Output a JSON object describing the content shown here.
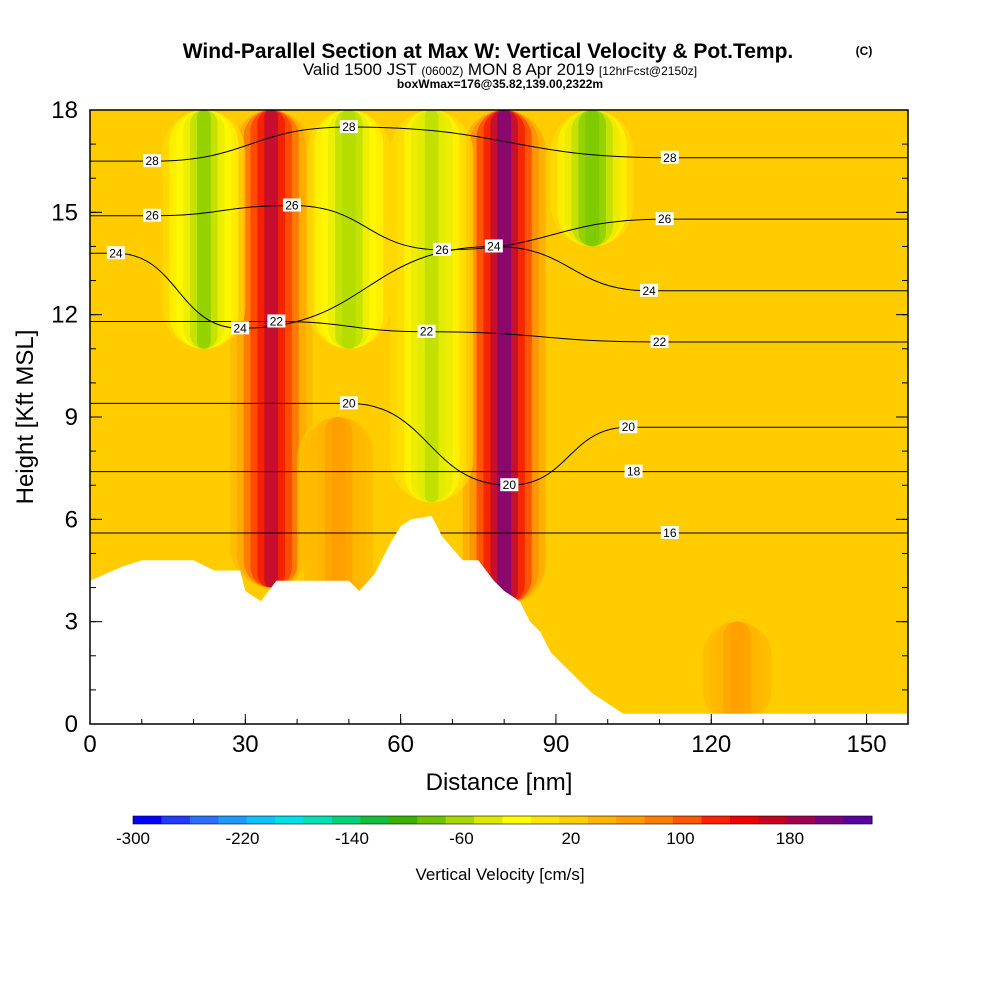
{
  "title": {
    "main": "Wind-Parallel Section at Max W: Vertical Velocity & Pot.Temp.",
    "copyright": "(C)",
    "valid_prefix": "Valid 1500 JST",
    "valid_utc": "(0600Z)",
    "valid_date": "MON 8 Apr 2019",
    "forecast": "[12hrFcst@2150z]",
    "box": "boxWmax=176@35.82,139.00,2322m"
  },
  "chart_data": {
    "type": "heatmap",
    "xlabel": "Distance [nm]",
    "ylabel": "Height [Kft MSL]",
    "xlim": [
      0,
      158
    ],
    "ylim": [
      0,
      18
    ],
    "x_ticks": [
      0,
      30,
      60,
      90,
      120,
      150
    ],
    "y_ticks": [
      0,
      3,
      6,
      9,
      12,
      15,
      18
    ],
    "colorbar": {
      "label": "Vertical Velocity [cm/s]",
      "tick_labels": [
        -300,
        -220,
        -140,
        -60,
        20,
        100,
        180
      ],
      "range": [
        -300,
        240
      ],
      "colors": [
        "#0000ff",
        "#1f3cff",
        "#2a6fff",
        "#1e9bff",
        "#10c0ff",
        "#00e0e8",
        "#00e0b0",
        "#00d27a",
        "#13bf3a",
        "#38b400",
        "#6fc400",
        "#a8d800",
        "#dcea00",
        "#ffff00",
        "#ffe400",
        "#ffcc00",
        "#ffb400",
        "#ff9a00",
        "#ff7d00",
        "#ff5600",
        "#ff2000",
        "#ee0000",
        "#c80020",
        "#a00050",
        "#7a0080",
        "#5a00a0"
      ]
    },
    "terrain_top_kft": [
      [
        0,
        4.2
      ],
      [
        3,
        4.4
      ],
      [
        6,
        4.6
      ],
      [
        10,
        4.8
      ],
      [
        20,
        4.8
      ],
      [
        24,
        4.5
      ],
      [
        29,
        4.5
      ],
      [
        30,
        3.9
      ],
      [
        33,
        3.6
      ],
      [
        36,
        4.2
      ],
      [
        40,
        4.2
      ],
      [
        50,
        4.2
      ],
      [
        52,
        3.9
      ],
      [
        55,
        4.4
      ],
      [
        58,
        5.3
      ],
      [
        60,
        5.8
      ],
      [
        62,
        6.0
      ],
      [
        66,
        6.1
      ],
      [
        68,
        5.5
      ],
      [
        72,
        4.8
      ],
      [
        75,
        4.8
      ],
      [
        78,
        4.2
      ],
      [
        80,
        3.9
      ],
      [
        83,
        3.6
      ],
      [
        85,
        3.0
      ],
      [
        87,
        2.7
      ],
      [
        89,
        2.1
      ],
      [
        91,
        1.8
      ],
      [
        93,
        1.5
      ],
      [
        95,
        1.2
      ],
      [
        97,
        0.9
      ],
      [
        100,
        0.6
      ],
      [
        103,
        0.3
      ],
      [
        158,
        0.3
      ]
    ],
    "vertical_velocity_cm_s": {
      "background": 20,
      "features": [
        {
          "x": 35,
          "y_range": [
            4.0,
            18
          ],
          "value": 180
        },
        {
          "x": 80,
          "y_range": [
            3.5,
            18
          ],
          "value": 220
        },
        {
          "x": 22,
          "y_range": [
            11,
            18
          ],
          "value": -80
        },
        {
          "x": 50,
          "y_range": [
            11,
            18
          ],
          "value": -70
        },
        {
          "x": 66,
          "y_range": [
            6.5,
            18
          ],
          "value": -60
        },
        {
          "x": 97,
          "y_range": [
            14,
            18
          ],
          "value": -90
        },
        {
          "x": 48,
          "y_range": [
            3,
            9
          ],
          "value": 60
        },
        {
          "x": 125,
          "y_range": [
            0,
            3
          ],
          "value": 60
        }
      ]
    },
    "potential_temperature_contour_labels": [
      {
        "x": 12,
        "y": 16.5,
        "value": 28
      },
      {
        "x": 50,
        "y": 17.5,
        "value": 28
      },
      {
        "x": 39,
        "y": 15.2,
        "value": 26
      },
      {
        "x": 12,
        "y": 14.9,
        "value": 26
      },
      {
        "x": 5,
        "y": 13.8,
        "value": 24
      },
      {
        "x": 68,
        "y": 13.9,
        "value": 26
      },
      {
        "x": 78,
        "y": 14.0,
        "value": 24
      },
      {
        "x": 29,
        "y": 11.6,
        "value": 24
      },
      {
        "x": 36,
        "y": 11.8,
        "value": 22
      },
      {
        "x": 65,
        "y": 11.5,
        "value": 22
      },
      {
        "x": 50,
        "y": 9.4,
        "value": 20
      },
      {
        "x": 81,
        "y": 7.0,
        "value": 20
      },
      {
        "x": 112,
        "y": 16.6,
        "value": 28
      },
      {
        "x": 111,
        "y": 14.8,
        "value": 26
      },
      {
        "x": 108,
        "y": 12.7,
        "value": 24
      },
      {
        "x": 110,
        "y": 11.2,
        "value": 22
      },
      {
        "x": 104,
        "y": 8.7,
        "value": 20
      },
      {
        "x": 105,
        "y": 7.4,
        "value": 18
      },
      {
        "x": 112,
        "y": 5.6,
        "value": 16
      }
    ]
  }
}
